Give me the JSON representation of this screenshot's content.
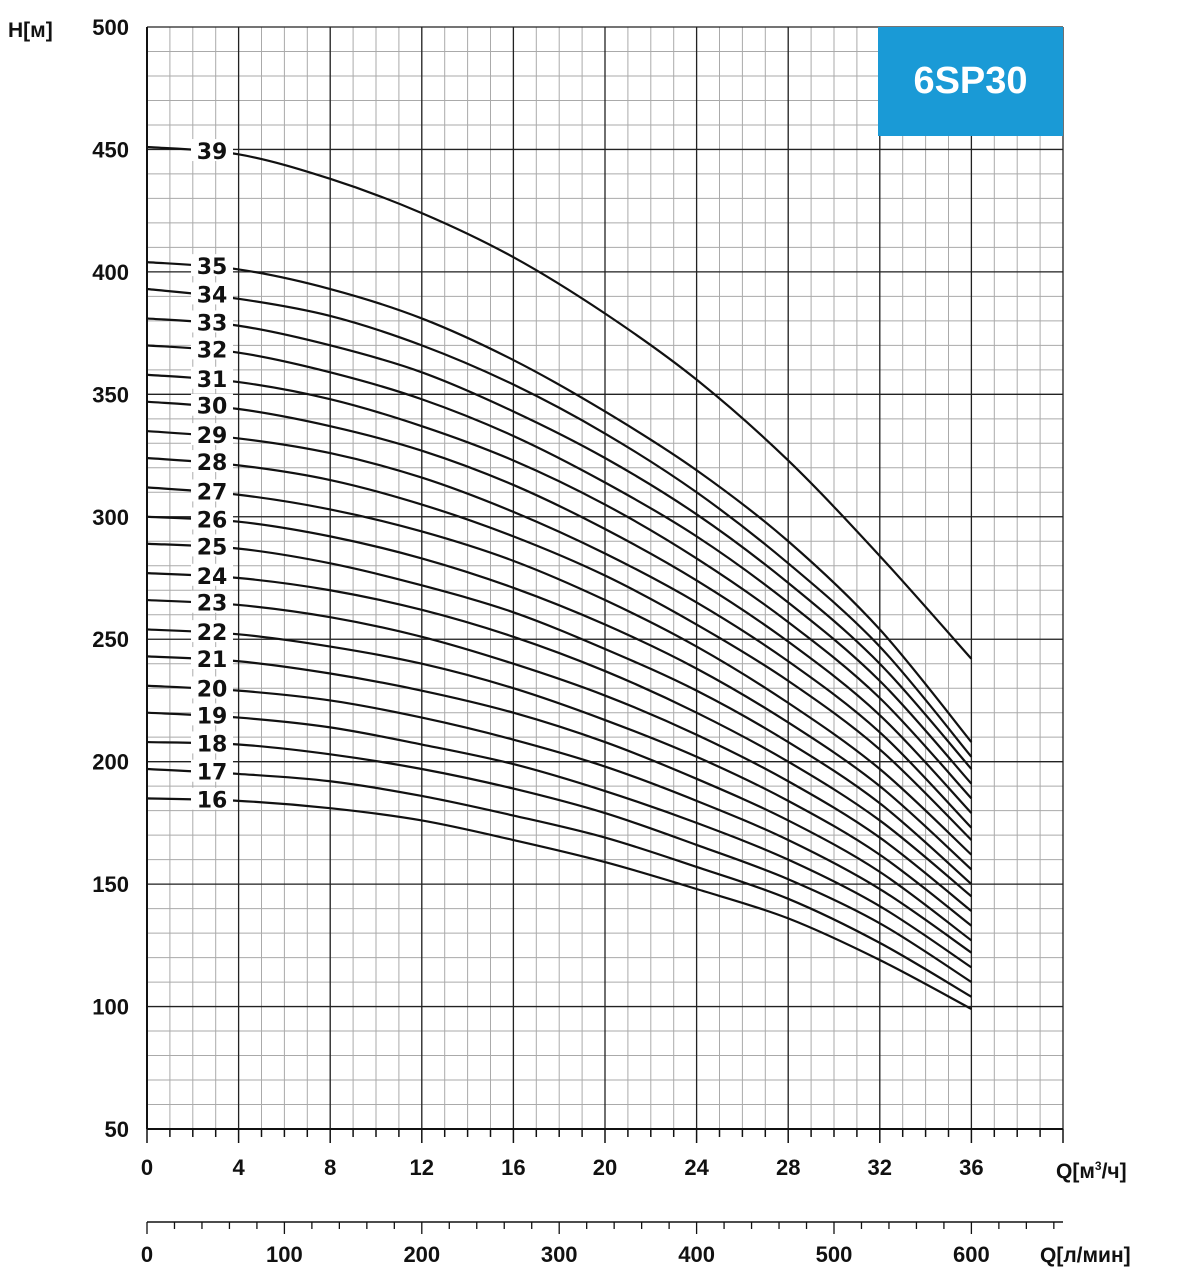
{
  "chart_data": {
    "type": "line",
    "badge": {
      "text": "6SP30",
      "color": "#1a9ad6"
    },
    "ylabel": "H[м]",
    "xlabel": "Q[м³/ч]",
    "xlabel_base": "Q[м",
    "xlabel_sup": "3",
    "xlabel_tail": "/ч]",
    "x2label": "Q[л/мин]",
    "xlim": [
      0,
      40
    ],
    "ylim": [
      50,
      500
    ],
    "x_ticks": [
      "0",
      "4",
      "8",
      "12",
      "16",
      "20",
      "24",
      "28",
      "32",
      "36"
    ],
    "y_ticks": [
      "50",
      "100",
      "150",
      "200",
      "250",
      "300",
      "350",
      "400",
      "450",
      "500"
    ],
    "x2_lim": [
      0,
      666.67
    ],
    "x2_ticks": [
      "0",
      "100",
      "200",
      "300",
      "400",
      "500",
      "600"
    ],
    "grid": true,
    "x": [
      0,
      4,
      8,
      12,
      16,
      20,
      24,
      28,
      32,
      36
    ],
    "series": [
      {
        "name": "16",
        "values": [
          185,
          184,
          181,
          176,
          168,
          159,
          148,
          136,
          119,
          99
        ]
      },
      {
        "name": "17",
        "values": [
          197,
          195,
          192,
          186,
          178,
          169,
          157,
          144,
          126,
          104
        ]
      },
      {
        "name": "18",
        "values": [
          208,
          207,
          203,
          197,
          189,
          179,
          166,
          152,
          134,
          110
        ]
      },
      {
        "name": "19",
        "values": [
          220,
          218,
          214,
          207,
          199,
          188,
          175,
          160,
          141,
          116
        ]
      },
      {
        "name": "20",
        "values": [
          231,
          229,
          225,
          218,
          209,
          198,
          184,
          168,
          148,
          122
        ]
      },
      {
        "name": "21",
        "values": [
          243,
          241,
          236,
          229,
          220,
          208,
          193,
          176,
          155,
          127
        ]
      },
      {
        "name": "22",
        "values": [
          254,
          252,
          247,
          240,
          230,
          217,
          202,
          184,
          162,
          133
        ]
      },
      {
        "name": "23",
        "values": [
          266,
          264,
          259,
          251,
          240,
          227,
          211,
          192,
          169,
          139
        ]
      },
      {
        "name": "24",
        "values": [
          277,
          275,
          270,
          262,
          251,
          237,
          220,
          200,
          176,
          145
        ]
      },
      {
        "name": "25",
        "values": [
          289,
          287,
          281,
          272,
          261,
          246,
          229,
          208,
          183,
          150
        ]
      },
      {
        "name": "26",
        "values": [
          300,
          298,
          292,
          283,
          271,
          256,
          238,
          216,
          190,
          156
        ]
      },
      {
        "name": "27",
        "values": [
          312,
          309,
          303,
          294,
          282,
          266,
          247,
          224,
          197,
          162
        ]
      },
      {
        "name": "28",
        "values": [
          324,
          321,
          315,
          305,
          292,
          276,
          256,
          233,
          205,
          168
        ]
      },
      {
        "name": "29",
        "values": [
          335,
          332,
          326,
          316,
          302,
          285,
          265,
          241,
          212,
          173
        ]
      },
      {
        "name": "30",
        "values": [
          347,
          344,
          337,
          327,
          313,
          295,
          274,
          249,
          219,
          179
        ]
      },
      {
        "name": "31",
        "values": [
          358,
          355,
          348,
          337,
          323,
          305,
          283,
          257,
          226,
          185
        ]
      },
      {
        "name": "32",
        "values": [
          370,
          367,
          359,
          348,
          333,
          314,
          292,
          265,
          233,
          191
        ]
      },
      {
        "name": "33",
        "values": [
          381,
          378,
          370,
          359,
          343,
          324,
          301,
          273,
          240,
          197
        ]
      },
      {
        "name": "34",
        "values": [
          393,
          389,
          382,
          370,
          354,
          334,
          310,
          281,
          247,
          202
        ]
      },
      {
        "name": "35",
        "values": [
          404,
          401,
          393,
          381,
          364,
          343,
          319,
          290,
          254,
          208
        ]
      },
      {
        "name": "39",
        "values": [
          451,
          448,
          438,
          424,
          406,
          383,
          356,
          323,
          284,
          242
        ]
      }
    ]
  }
}
